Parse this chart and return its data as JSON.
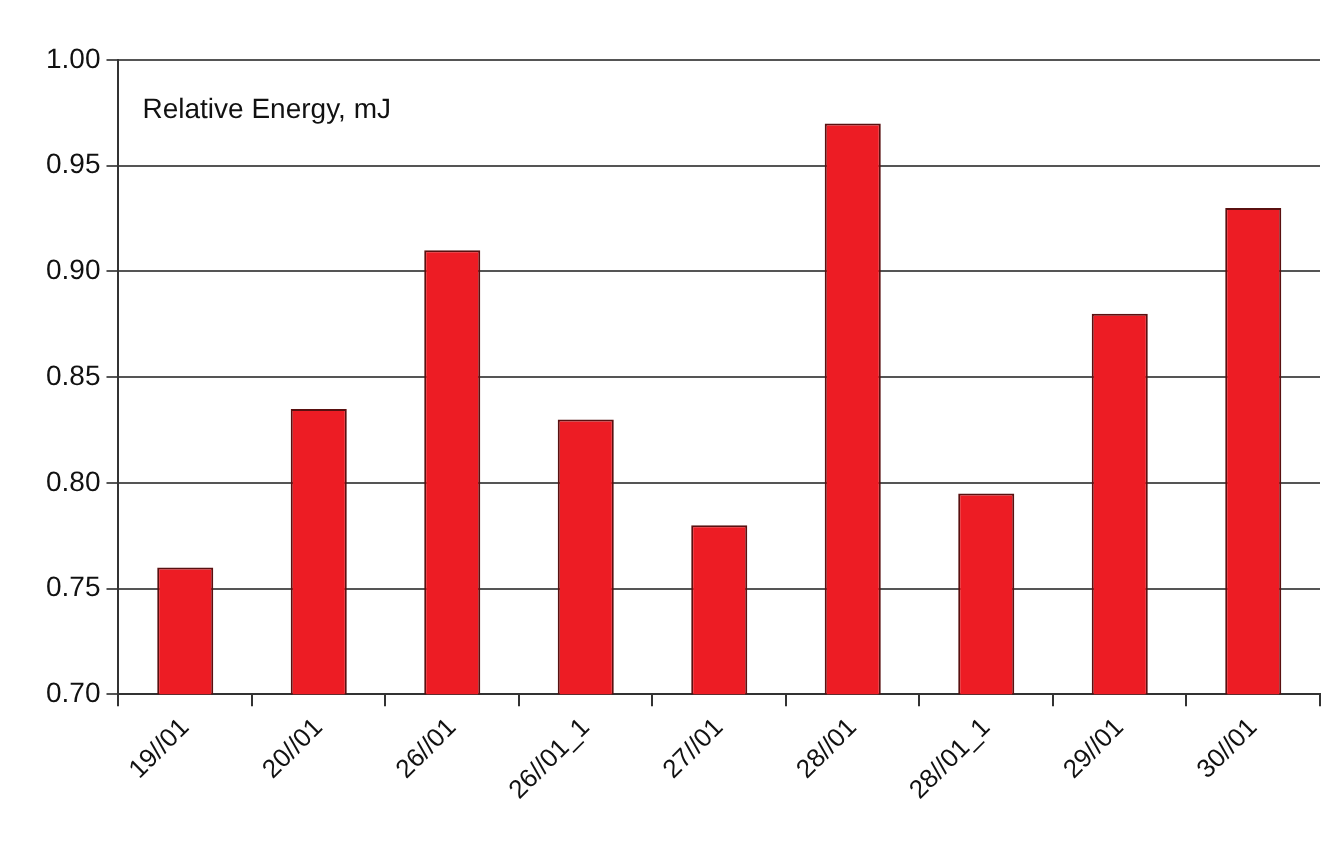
{
  "chart_data": {
    "type": "bar",
    "ylabel": "Relative Energy, mJ",
    "categories": [
      "19//01",
      "20//01",
      "26//01",
      "26//01_1",
      "27//01",
      "28//01",
      "28//01_1",
      "29//01",
      "30//01"
    ],
    "values": [
      0.76,
      0.835,
      0.91,
      0.83,
      0.78,
      0.97,
      0.795,
      0.88,
      0.93
    ],
    "color": "#ed1c24",
    "ylim": [
      0.7,
      1.0
    ],
    "yticks": [
      {
        "value": 0.7,
        "label": "0.70"
      },
      {
        "value": 0.75,
        "label": "0.75"
      },
      {
        "value": 0.8,
        "label": "0.80"
      },
      {
        "value": 0.85,
        "label": "0.85"
      },
      {
        "value": 0.9,
        "label": "0.90"
      },
      {
        "value": 0.95,
        "label": "0.95"
      },
      {
        "value": 1.0,
        "label": "1.00"
      }
    ],
    "grid": "y",
    "legend": false
  }
}
